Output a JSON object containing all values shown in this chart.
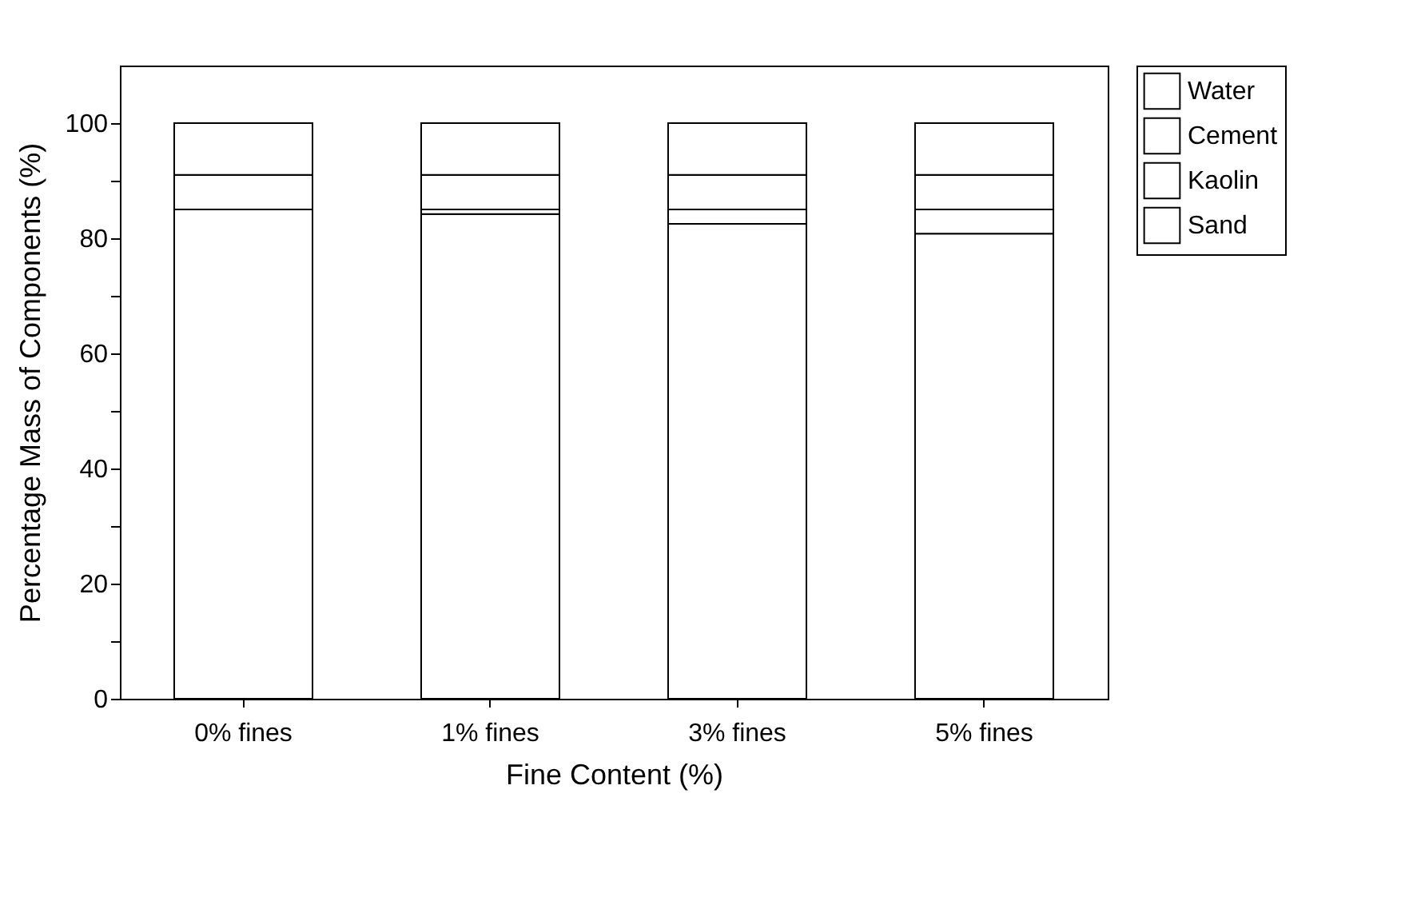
{
  "chart_data": {
    "type": "bar",
    "stacked": true,
    "xlabel": "Fine Content (%)",
    "ylabel": "Percentage Mass of Components (%)",
    "categories": [
      "0% fines",
      "1% fines",
      "3% fines",
      "5% fines"
    ],
    "series": [
      {
        "name": "Sand",
        "color": "#ffffff",
        "values": [
          85,
          84.2,
          82.5,
          80.8
        ]
      },
      {
        "name": "Kaolin",
        "color": "#ffffff",
        "values": [
          0,
          0.8,
          2.5,
          4.2
        ]
      },
      {
        "name": "Cement",
        "color": "#ffffff",
        "values": [
          6,
          6,
          6,
          6
        ]
      },
      {
        "name": "Water",
        "color": "#ffffff",
        "values": [
          9,
          9,
          9,
          9
        ]
      }
    ],
    "ylim": [
      0,
      110
    ],
    "yticks": [
      0,
      {
        "value": 10,
        "label": null
      },
      20,
      {
        "value": 30,
        "label": null
      },
      40,
      {
        "value": 50,
        "label": null
      },
      60,
      {
        "value": 70,
        "label": null
      },
      80,
      {
        "value": 90,
        "label": null
      },
      100
    ],
    "legend": "right",
    "grid": false
  }
}
